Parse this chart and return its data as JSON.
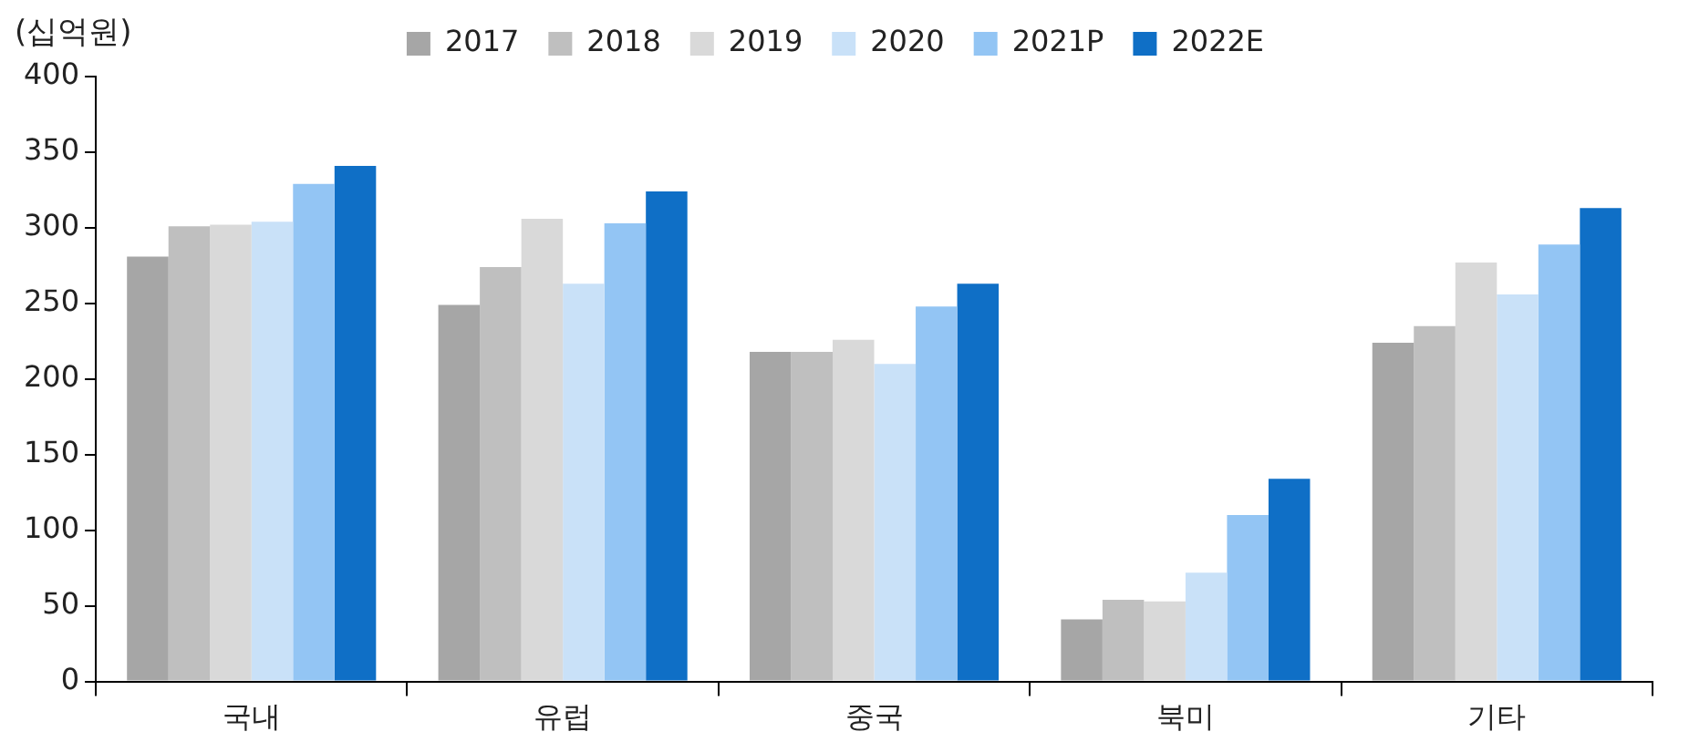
{
  "chart_data": {
    "type": "bar",
    "ylabel": "(십억원)",
    "categories": [
      "국내",
      "유럽",
      "중국",
      "북미",
      "기타"
    ],
    "series": [
      {
        "name": "2017",
        "color": "#a6a6a6",
        "values": [
          281,
          249,
          218,
          41,
          224
        ]
      },
      {
        "name": "2018",
        "color": "#bfbfbf",
        "values": [
          301,
          274,
          218,
          54,
          235
        ]
      },
      {
        "name": "2019",
        "color": "#d9d9d9",
        "values": [
          302,
          306,
          226,
          53,
          277
        ]
      },
      {
        "name": "2020",
        "color": "#c9e1f8",
        "values": [
          304,
          263,
          210,
          72,
          256
        ]
      },
      {
        "name": "2021P",
        "color": "#93c5f4",
        "values": [
          329,
          303,
          248,
          110,
          289
        ]
      },
      {
        "name": "2022E",
        "color": "#0f6fc6",
        "values": [
          341,
          324,
          263,
          134,
          313
        ]
      }
    ],
    "ylim": [
      0,
      400
    ],
    "yticks": [
      0,
      50,
      100,
      150,
      200,
      250,
      300,
      350,
      400
    ],
    "grid": false,
    "legend": "top"
  }
}
